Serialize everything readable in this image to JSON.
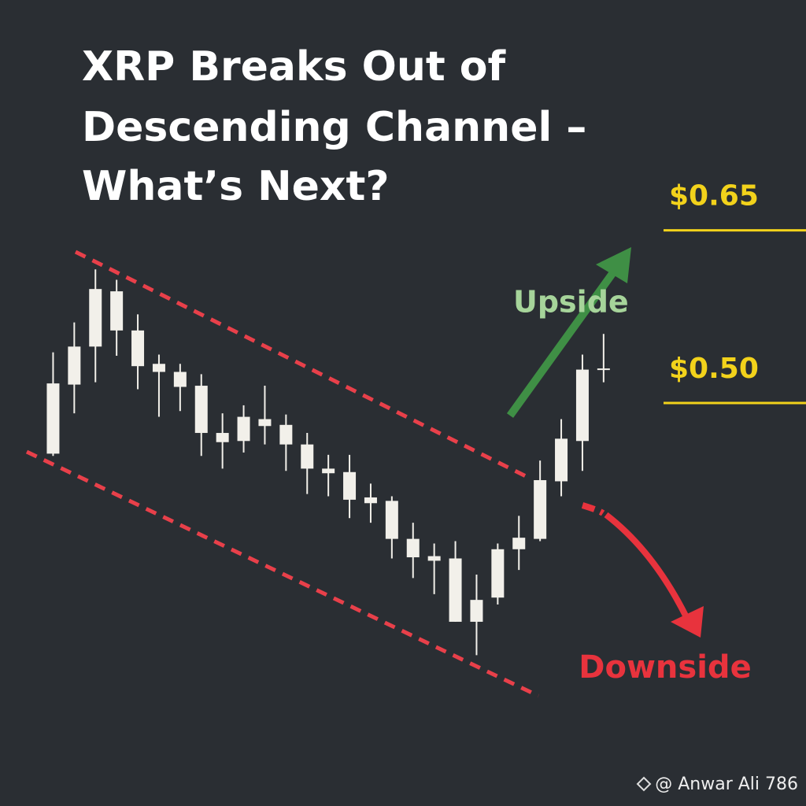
{
  "chart_data": {
    "type": "candlestick",
    "title": [
      "XRP Breaks Out of",
      "Descending Channel –",
      "What’s Next?"
    ],
    "categories": [
      null,
      null,
      null,
      null,
      null,
      null,
      null,
      null,
      null,
      null,
      null,
      null,
      null,
      null,
      null,
      null,
      null,
      null,
      null,
      null,
      null,
      null,
      null,
      null,
      null,
      null,
      null
    ],
    "open": [
      0.456,
      0.516,
      0.549,
      0.563,
      0.563,
      0.534,
      0.527,
      0.515,
      0.474,
      0.488,
      0.486,
      0.481,
      0.464,
      0.443,
      0.44,
      0.418,
      0.415,
      0.382,
      0.367,
      0.365,
      0.329,
      0.331,
      0.373,
      0.382,
      0.432,
      0.467,
      0.529
    ],
    "high": [
      0.544,
      0.57,
      0.616,
      0.607,
      0.577,
      0.542,
      0.534,
      0.525,
      0.491,
      0.498,
      0.515,
      0.49,
      0.474,
      0.455,
      0.455,
      0.43,
      0.419,
      0.396,
      0.378,
      0.38,
      0.351,
      0.378,
      0.402,
      0.45,
      0.486,
      0.542,
      0.56
    ],
    "low": [
      0.454,
      0.491,
      0.518,
      0.541,
      0.512,
      0.488,
      0.493,
      0.454,
      0.443,
      0.457,
      0.464,
      0.441,
      0.421,
      0.419,
      0.4,
      0.396,
      0.365,
      0.348,
      0.334,
      0.31,
      0.281,
      0.325,
      0.355,
      0.38,
      0.419,
      0.441,
      0.518
    ],
    "close": [
      0.517,
      0.549,
      0.599,
      0.597,
      0.532,
      0.527,
      0.514,
      0.474,
      0.466,
      0.467,
      0.48,
      0.464,
      0.443,
      0.439,
      0.416,
      0.413,
      0.382,
      0.366,
      0.363,
      0.31,
      0.31,
      0.373,
      0.383,
      0.433,
      0.469,
      0.529,
      0.53
    ],
    "color": "#f2f0ea",
    "ylim": [
      0.15,
      0.85
    ],
    "reference_lines": [
      {
        "value": 0.65,
        "label": "$0.65"
      },
      {
        "value": 0.5,
        "label": "$0.50"
      }
    ],
    "reference_color": "#f2d21b",
    "annotations": {
      "upside": "Upside",
      "downside": "Downside"
    },
    "credit": "@ Anwar Ali 786"
  }
}
